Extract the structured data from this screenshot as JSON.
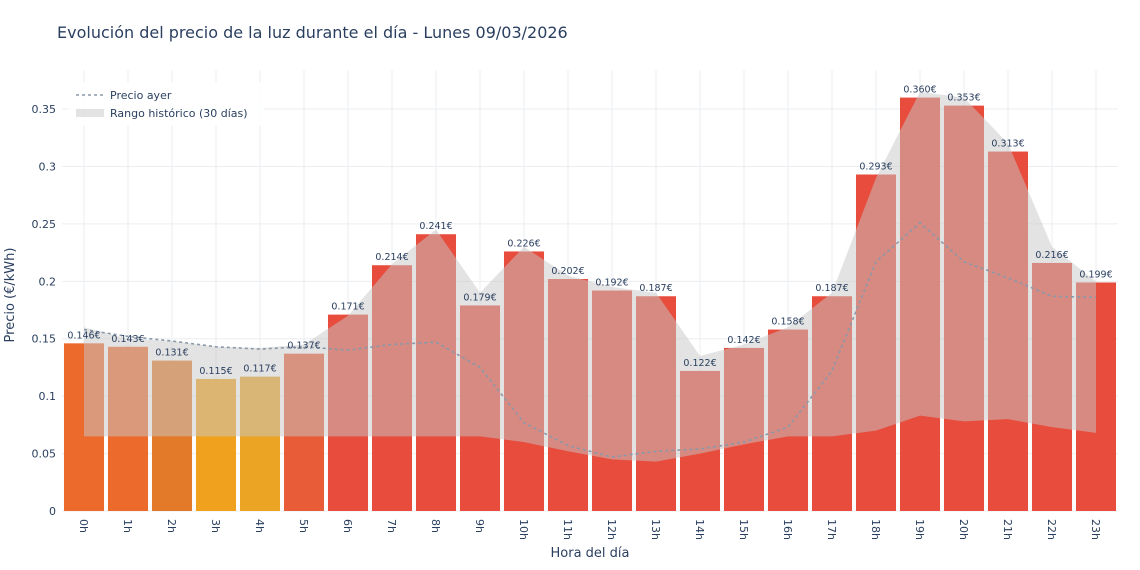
{
  "chart_data": {
    "type": "bar",
    "title": "Evolución del precio de la luz durante el día - Lunes 09/03/2026",
    "x_label": "Hora del día",
    "y_label": "Precio (€/kWh)",
    "categories": [
      "0h",
      "1h",
      "2h",
      "3h",
      "4h",
      "5h",
      "6h",
      "7h",
      "8h",
      "9h",
      "10h",
      "11h",
      "12h",
      "13h",
      "14h",
      "15h",
      "16h",
      "17h",
      "18h",
      "19h",
      "20h",
      "21h",
      "22h",
      "23h"
    ],
    "values": [
      0.146,
      0.143,
      0.131,
      0.115,
      0.117,
      0.137,
      0.171,
      0.214,
      0.241,
      0.179,
      0.226,
      0.202,
      0.192,
      0.187,
      0.122,
      0.142,
      0.158,
      0.187,
      0.293,
      0.36,
      0.353,
      0.313,
      0.216,
      0.199
    ],
    "value_labels": [
      "0.146€",
      "0.143€",
      "0.131€",
      "0.115€",
      "0.117€",
      "0.137€",
      "0.171€",
      "0.214€",
      "0.241€",
      "0.179€",
      "0.226€",
      "0.202€",
      "0.192€",
      "0.187€",
      "0.122€",
      "0.142€",
      "0.158€",
      "0.187€",
      "0.293€",
      "0.360€",
      "0.353€",
      "0.313€",
      "0.216€",
      "0.199€"
    ],
    "colors": [
      "#ec6a2c",
      "#ec6a2c",
      "#e37a2a",
      "#f0a21e",
      "#eba424",
      "#e95c38",
      "#e74c3c",
      "#e74c3c",
      "#e74c3c",
      "#e74c3c",
      "#e74c3c",
      "#e74c3c",
      "#e74c3c",
      "#e74c3c",
      "#e74c3c",
      "#e74c3c",
      "#e74c3c",
      "#e74c3c",
      "#e74c3c",
      "#e74c3c",
      "#e74c3c",
      "#e74c3c",
      "#e74c3c",
      "#e74c3c"
    ],
    "series": [
      {
        "name": "Precio ayer",
        "type": "line",
        "color": "#8a98a8",
        "values": [
          0.158,
          0.152,
          0.148,
          0.143,
          0.141,
          0.143,
          0.14,
          0.145,
          0.147,
          0.125,
          0.077,
          0.057,
          0.047,
          0.052,
          0.054,
          0.06,
          0.073,
          0.122,
          0.217,
          0.251,
          0.217,
          0.203,
          0.187,
          0.186
        ]
      },
      {
        "name": "Rango histórico (30 días)",
        "type": "band",
        "color": "rgba(200,200,200,0.5)",
        "low": [
          0.065,
          0.065,
          0.065,
          0.065,
          0.065,
          0.065,
          0.065,
          0.065,
          0.065,
          0.065,
          0.06,
          0.052,
          0.045,
          0.043,
          0.05,
          0.058,
          0.065,
          0.065,
          0.07,
          0.083,
          0.078,
          0.08,
          0.073,
          0.068
        ],
        "high": [
          0.16,
          0.15,
          0.148,
          0.143,
          0.142,
          0.145,
          0.17,
          0.215,
          0.245,
          0.19,
          0.23,
          0.205,
          0.195,
          0.19,
          0.135,
          0.145,
          0.16,
          0.19,
          0.29,
          0.365,
          0.36,
          0.32,
          0.23,
          0.2
        ]
      }
    ],
    "ylim": [
      0,
      0.384
    ],
    "yticks": [
      0,
      0.05,
      0.1,
      0.15,
      0.2,
      0.25,
      0.3,
      0.35
    ],
    "grid": true,
    "legend": "top-left"
  }
}
